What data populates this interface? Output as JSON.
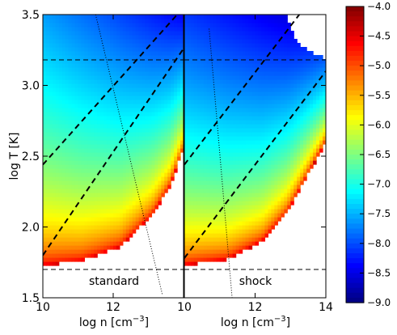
{
  "chart_data": {
    "type": "heatmap",
    "panels": [
      {
        "label": "standard",
        "xlabel": "log n [cm",
        "xlabel_exp": "−3",
        "xlabel_close": "]",
        "ylabel": "log T [K]",
        "xlim": [
          10,
          14
        ],
        "ylim": [
          1.5,
          3.5
        ],
        "xticks": [
          10,
          12,
          14
        ],
        "xtick_labels": [
          "10",
          "12",
          ""
        ],
        "yticks": [
          1.5,
          2.0,
          2.5,
          3.0,
          3.5
        ],
        "ytick_labels": [
          "1.5",
          "2.0",
          "2.5",
          "3.0",
          "3.5"
        ],
        "value_at_top_left": -7.6,
        "value_at_top_right": -8.4,
        "value_at_bottom_edge": -4.3,
        "boundary": [
          {
            "x": 10.0,
            "y": 1.73
          },
          {
            "x": 11.1,
            "y": 1.76
          },
          {
            "x": 12.2,
            "y": 1.86
          },
          {
            "x": 13.1,
            "y": 2.08
          },
          {
            "x": 13.6,
            "y": 2.28
          },
          {
            "x": 14.0,
            "y": 2.55
          }
        ],
        "dashed_diagonals": [
          [
            {
              "x": 10.0,
              "y": 2.44
            },
            {
              "x": 14.0,
              "y": 3.55
            }
          ],
          [
            {
              "x": 10.0,
              "y": 1.8
            },
            {
              "x": 14.0,
              "y": 3.26
            }
          ]
        ],
        "dotted_line": [
          {
            "x": 11.5,
            "y": 3.5
          },
          {
            "x": 13.4,
            "y": 1.52
          }
        ],
        "horizontal_dashed": [
          1.7,
          3.18
        ]
      },
      {
        "label": "shock",
        "xlabel": "log n [cm",
        "xlabel_exp": "−3",
        "xlabel_close": "]",
        "xlim": [
          10,
          14
        ],
        "ylim": [
          1.5,
          3.5
        ],
        "xticks": [
          10,
          12,
          14
        ],
        "xtick_labels": [
          "10",
          "12",
          "14"
        ],
        "value_at_top_left": -8.1,
        "value_at_top_right": -8.7,
        "value_at_bottom_edge": -4.3,
        "boundary": [
          {
            "x": 10.0,
            "y": 1.73
          },
          {
            "x": 11.2,
            "y": 1.77
          },
          {
            "x": 12.2,
            "y": 1.9
          },
          {
            "x": 12.9,
            "y": 2.1
          },
          {
            "x": 13.6,
            "y": 2.42
          },
          {
            "x": 14.0,
            "y": 2.6
          }
        ],
        "top_cutout": [
          {
            "x": 12.85,
            "y": 3.5
          },
          {
            "x": 13.2,
            "y": 3.3
          },
          {
            "x": 14.0,
            "y": 3.18
          }
        ],
        "dashed_diagonals": [
          [
            {
              "x": 10.0,
              "y": 2.44
            },
            {
              "x": 13.25,
              "y": 3.5
            }
          ],
          [
            {
              "x": 10.0,
              "y": 1.78
            },
            {
              "x": 14.0,
              "y": 3.1
            }
          ]
        ],
        "dotted_line": [
          {
            "x": 10.7,
            "y": 3.4
          },
          {
            "x": 11.35,
            "y": 1.5
          }
        ],
        "horizontal_dashed": [
          1.7,
          3.18
        ]
      }
    ],
    "colorbar": {
      "colormap": "jet",
      "range": [
        -9.0,
        -4.0
      ],
      "ticks": [
        -4.0,
        -4.5,
        -5.0,
        -5.5,
        -6.0,
        -6.5,
        -7.0,
        -7.5,
        -8.0,
        -8.5,
        -9.0
      ],
      "tick_labels": [
        "−4.0",
        "−4.5",
        "−5.0",
        "−5.5",
        "−6.0",
        "−6.5",
        "−7.0",
        "−7.5",
        "−8.0",
        "−8.5",
        "−9.0"
      ]
    }
  }
}
